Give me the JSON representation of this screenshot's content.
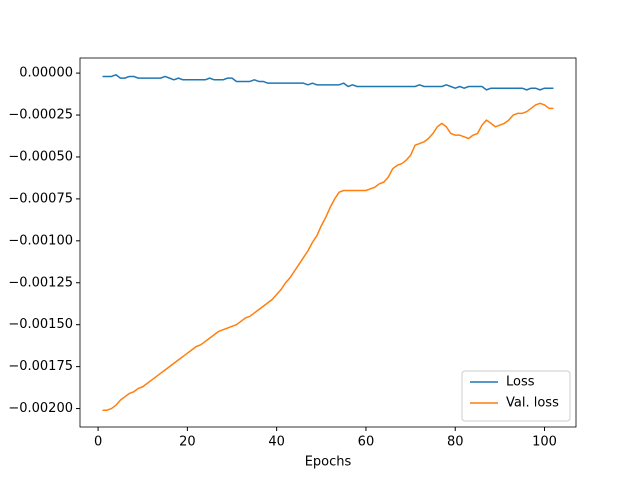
{
  "chart_data": {
    "type": "line",
    "xlabel": "Epochs",
    "x": [
      1,
      2,
      3,
      4,
      5,
      6,
      7,
      8,
      9,
      10,
      11,
      12,
      13,
      14,
      15,
      16,
      17,
      18,
      19,
      20,
      21,
      22,
      23,
      24,
      25,
      26,
      27,
      28,
      29,
      30,
      31,
      32,
      33,
      34,
      35,
      36,
      37,
      38,
      39,
      40,
      41,
      42,
      43,
      44,
      45,
      46,
      47,
      48,
      49,
      50,
      51,
      52,
      53,
      54,
      55,
      56,
      57,
      58,
      59,
      60,
      61,
      62,
      63,
      64,
      65,
      66,
      67,
      68,
      69,
      70,
      71,
      72,
      73,
      74,
      75,
      76,
      77,
      78,
      79,
      80,
      81,
      82,
      83,
      84,
      85,
      86,
      87,
      88,
      89,
      90,
      91,
      92,
      93,
      94,
      95,
      96,
      97,
      98,
      99,
      100,
      101,
      102
    ],
    "series": [
      {
        "name": "Loss",
        "color": "#1f77b4",
        "values": [
          -2e-05,
          -2e-05,
          -2e-05,
          -1e-05,
          -3e-05,
          -3e-05,
          -2e-05,
          -2e-05,
          -3e-05,
          -3e-05,
          -3e-05,
          -3e-05,
          -3e-05,
          -3e-05,
          -2e-05,
          -3e-05,
          -4e-05,
          -3e-05,
          -4e-05,
          -4e-05,
          -4e-05,
          -4e-05,
          -4e-05,
          -4e-05,
          -3e-05,
          -4e-05,
          -4e-05,
          -4e-05,
          -3e-05,
          -3e-05,
          -5e-05,
          -5e-05,
          -5e-05,
          -5e-05,
          -4e-05,
          -5e-05,
          -5e-05,
          -6e-05,
          -6e-05,
          -6e-05,
          -6e-05,
          -6e-05,
          -6e-05,
          -6e-05,
          -6e-05,
          -6e-05,
          -7e-05,
          -6e-05,
          -7e-05,
          -7e-05,
          -7e-05,
          -7e-05,
          -7e-05,
          -7e-05,
          -6e-05,
          -8e-05,
          -7e-05,
          -8e-05,
          -8e-05,
          -8e-05,
          -8e-05,
          -8e-05,
          -8e-05,
          -8e-05,
          -8e-05,
          -8e-05,
          -8e-05,
          -8e-05,
          -8e-05,
          -8e-05,
          -8e-05,
          -7e-05,
          -8e-05,
          -8e-05,
          -8e-05,
          -8e-05,
          -8e-05,
          -7e-05,
          -8e-05,
          -9e-05,
          -8e-05,
          -9e-05,
          -8e-05,
          -8e-05,
          -8e-05,
          -8e-05,
          -0.0001,
          -9e-05,
          -9e-05,
          -9e-05,
          -9e-05,
          -9e-05,
          -9e-05,
          -9e-05,
          -9e-05,
          -0.0001,
          -9e-05,
          -9e-05,
          -0.0001,
          -9e-05,
          -9e-05,
          -9e-05
        ]
      },
      {
        "name": "Val. loss",
        "color": "#ff7f0e",
        "values": [
          -0.00201,
          -0.00201,
          -0.002,
          -0.00198,
          -0.00195,
          -0.00193,
          -0.00191,
          -0.0019,
          -0.00188,
          -0.00187,
          -0.00185,
          -0.00183,
          -0.00181,
          -0.00179,
          -0.00177,
          -0.00175,
          -0.00173,
          -0.00171,
          -0.00169,
          -0.00167,
          -0.00165,
          -0.00163,
          -0.00162,
          -0.0016,
          -0.00158,
          -0.00156,
          -0.00154,
          -0.00153,
          -0.00152,
          -0.00151,
          -0.0015,
          -0.00148,
          -0.00146,
          -0.00145,
          -0.00143,
          -0.00141,
          -0.00139,
          -0.00137,
          -0.00135,
          -0.00132,
          -0.00129,
          -0.00125,
          -0.00122,
          -0.00118,
          -0.00114,
          -0.0011,
          -0.00106,
          -0.00101,
          -0.00097,
          -0.00091,
          -0.00086,
          -0.0008,
          -0.00075,
          -0.00071,
          -0.0007,
          -0.0007,
          -0.0007,
          -0.0007,
          -0.0007,
          -0.0007,
          -0.00069,
          -0.00068,
          -0.00066,
          -0.00065,
          -0.00062,
          -0.00057,
          -0.00055,
          -0.00054,
          -0.00052,
          -0.00049,
          -0.00043,
          -0.00042,
          -0.00041,
          -0.00039,
          -0.00036,
          -0.00032,
          -0.0003,
          -0.00032,
          -0.00036,
          -0.00037,
          -0.00037,
          -0.00038,
          -0.00039,
          -0.00037,
          -0.00036,
          -0.00031,
          -0.00028,
          -0.0003,
          -0.00032,
          -0.00031,
          -0.0003,
          -0.00028,
          -0.00025,
          -0.00024,
          -0.00024,
          -0.00023,
          -0.00021,
          -0.00019,
          -0.00018,
          -0.00019,
          -0.00021,
          -0.00021
        ]
      }
    ],
    "xlim": [
      -4.05,
      107.05
    ],
    "xticks": [
      0,
      20,
      40,
      60,
      80,
      100
    ],
    "ylim": [
      -0.00211,
      9e-05
    ],
    "yticks": [
      {
        "value": 0,
        "label": "0.00000"
      },
      {
        "value": -0.00025,
        "label": "−0.00025"
      },
      {
        "value": -0.0005,
        "label": "−0.00050"
      },
      {
        "value": -0.00075,
        "label": "−0.00075"
      },
      {
        "value": -0.001,
        "label": "−0.00100"
      },
      {
        "value": -0.00125,
        "label": "−0.00125"
      },
      {
        "value": -0.0015,
        "label": "−0.00150"
      },
      {
        "value": -0.00175,
        "label": "−0.00175"
      },
      {
        "value": -0.002,
        "label": "−0.00200"
      }
    ],
    "grid": false,
    "legend": "lower right"
  }
}
